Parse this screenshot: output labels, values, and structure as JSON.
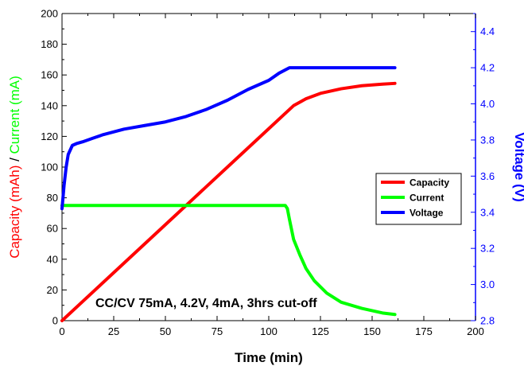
{
  "chart_data": {
    "type": "line",
    "xlabel": "Time (min)",
    "ylabel_left_parts": [
      {
        "text": "Capacity (mAh)",
        "color": "#ff0000"
      },
      {
        "text": " / ",
        "color": "#000000"
      },
      {
        "text": "Current (mA)",
        "color": "#00ff00"
      }
    ],
    "ylabel_right": "Voltage (V)",
    "xlim": [
      0,
      200
    ],
    "ylim_left": [
      0,
      200
    ],
    "ylim_right": [
      2.8,
      4.5
    ],
    "x_ticks": [
      0,
      25,
      50,
      75,
      100,
      125,
      150,
      175,
      200
    ],
    "y_ticks_left": [
      0,
      20,
      40,
      60,
      80,
      100,
      120,
      140,
      160,
      180,
      200
    ],
    "y_ticks_right": [
      "2.8",
      "3.0",
      "3.2",
      "3.4",
      "3.6",
      "3.8",
      "4.0",
      "4.2",
      "4.4"
    ],
    "annotation": "CC/CV 75mA, 4.2V, 4mA, 3hrs cut-off",
    "legend_position": "right-middle",
    "colors": {
      "left_axis": "#000000",
      "right_axis": "#0000ff"
    },
    "series": [
      {
        "name": "Capacity",
        "color": "#ff0000",
        "axis": "left",
        "x": [
          0,
          20,
          40,
          60,
          80,
          100,
          108,
          112,
          118,
          125,
          135,
          145,
          155,
          161
        ],
        "y": [
          0,
          25,
          50,
          75,
          100,
          125,
          135,
          140,
          144.5,
          148,
          151,
          153,
          154,
          154.5
        ]
      },
      {
        "name": "Current",
        "color": "#00ff00",
        "axis": "left",
        "x": [
          0,
          108,
          109,
          110,
          112,
          115,
          118,
          122,
          128,
          135,
          145,
          155,
          161
        ],
        "y": [
          75,
          75,
          73,
          66,
          53,
          43,
          34,
          26,
          18,
          12,
          8,
          5,
          4
        ]
      },
      {
        "name": "Voltage",
        "color": "#0000ff",
        "axis": "right",
        "x": [
          0,
          1,
          2,
          3,
          5,
          7,
          10,
          15,
          20,
          30,
          40,
          50,
          60,
          70,
          80,
          90,
          100,
          105,
          110,
          120,
          140,
          161
        ],
        "y": [
          3.42,
          3.55,
          3.65,
          3.72,
          3.77,
          3.78,
          3.79,
          3.81,
          3.83,
          3.86,
          3.88,
          3.9,
          3.93,
          3.97,
          4.02,
          4.08,
          4.13,
          4.17,
          4.2,
          4.2,
          4.2,
          4.2
        ]
      }
    ]
  }
}
